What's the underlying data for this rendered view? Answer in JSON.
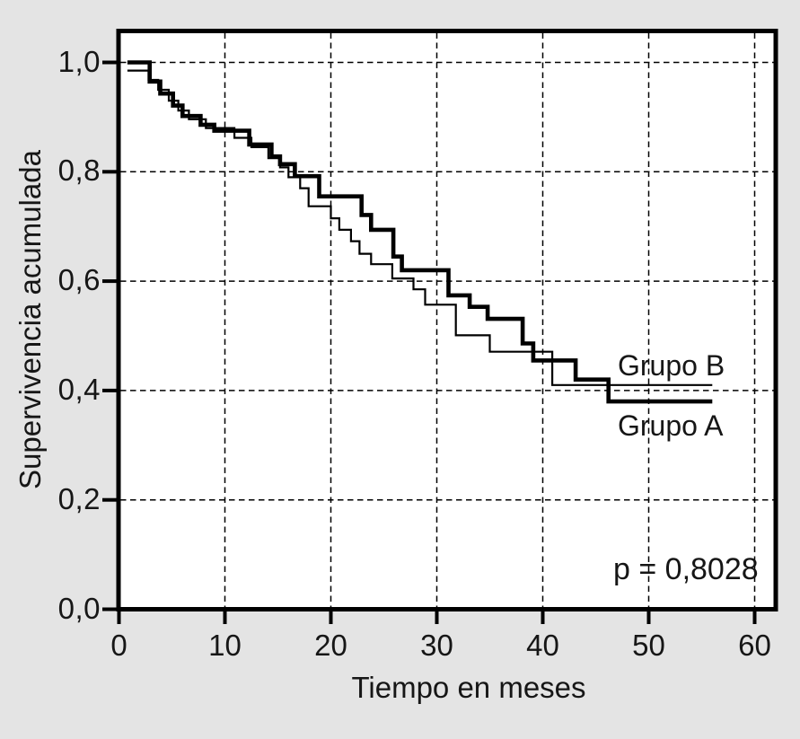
{
  "chart_data": {
    "type": "line",
    "chart_kind": "kaplan-meier-step-survival",
    "title": "",
    "xlabel": "Tiempo en meses",
    "ylabel": "Supervivencia acumulada",
    "xlim": [
      0,
      62
    ],
    "ylim": [
      0,
      1.057
    ],
    "grid": "dashed-both-axes",
    "legend_position": "inline-labels-at-line-ends",
    "x_ticks": [
      {
        "value": 0,
        "label": "0"
      },
      {
        "value": 10,
        "label": "10"
      },
      {
        "value": 20,
        "label": "20"
      },
      {
        "value": 30,
        "label": "30"
      },
      {
        "value": 40,
        "label": "40"
      },
      {
        "value": 50,
        "label": "50"
      },
      {
        "value": 60,
        "label": "60"
      }
    ],
    "y_ticks": [
      {
        "value": 0.0,
        "label": "0,0"
      },
      {
        "value": 0.2,
        "label": "0,2"
      },
      {
        "value": 0.4,
        "label": "0,4"
      },
      {
        "value": 0.6,
        "label": "0,6"
      },
      {
        "value": 0.8,
        "label": "0,8"
      },
      {
        "value": 1.0,
        "label": "1,0"
      }
    ],
    "annotation": {
      "text": "p = 0,8028"
    },
    "series": [
      {
        "name": "Grupo B",
        "line_style": "thin",
        "start": [
          0.8,
          0.985
        ],
        "end_time": 56.0,
        "points": [
          [
            2.8,
            0.968
          ],
          [
            3.7,
            0.95
          ],
          [
            4.7,
            0.93
          ],
          [
            5.6,
            0.912
          ],
          [
            6.6,
            0.896
          ],
          [
            8.2,
            0.88
          ],
          [
            10.9,
            0.862
          ],
          [
            12.5,
            0.845
          ],
          [
            14.1,
            0.825
          ],
          [
            15.2,
            0.808
          ],
          [
            16.0,
            0.79
          ],
          [
            17.1,
            0.77
          ],
          [
            17.9,
            0.737
          ],
          [
            20.0,
            0.715
          ],
          [
            20.8,
            0.694
          ],
          [
            21.9,
            0.673
          ],
          [
            22.7,
            0.65
          ],
          [
            23.8,
            0.631
          ],
          [
            25.8,
            0.605
          ],
          [
            27.8,
            0.585
          ],
          [
            28.9,
            0.557
          ],
          [
            31.8,
            0.501
          ],
          [
            35.0,
            0.471
          ],
          [
            40.9,
            0.41
          ]
        ]
      },
      {
        "name": "Grupo A",
        "line_style": "thick",
        "start": [
          0.8,
          1.0
        ],
        "end_time": 56.0,
        "points": [
          [
            2.9,
            0.965
          ],
          [
            3.9,
            0.943
          ],
          [
            5.1,
            0.921
          ],
          [
            6.0,
            0.902
          ],
          [
            7.7,
            0.886
          ],
          [
            9.0,
            0.875
          ],
          [
            12.3,
            0.85
          ],
          [
            14.4,
            0.828
          ],
          [
            15.2,
            0.814
          ],
          [
            16.6,
            0.792
          ],
          [
            18.9,
            0.755
          ],
          [
            22.9,
            0.721
          ],
          [
            23.8,
            0.694
          ],
          [
            25.9,
            0.645
          ],
          [
            26.7,
            0.62
          ],
          [
            31.1,
            0.574
          ],
          [
            33.1,
            0.553
          ],
          [
            34.8,
            0.531
          ],
          [
            38.1,
            0.486
          ],
          [
            39.1,
            0.455
          ],
          [
            43.1,
            0.42
          ],
          [
            46.2,
            0.38
          ]
        ]
      }
    ]
  },
  "colors": {
    "page_background": "#e4e4e4",
    "plot_background": "#ffffff",
    "line": "#000000",
    "text": "#161616"
  }
}
